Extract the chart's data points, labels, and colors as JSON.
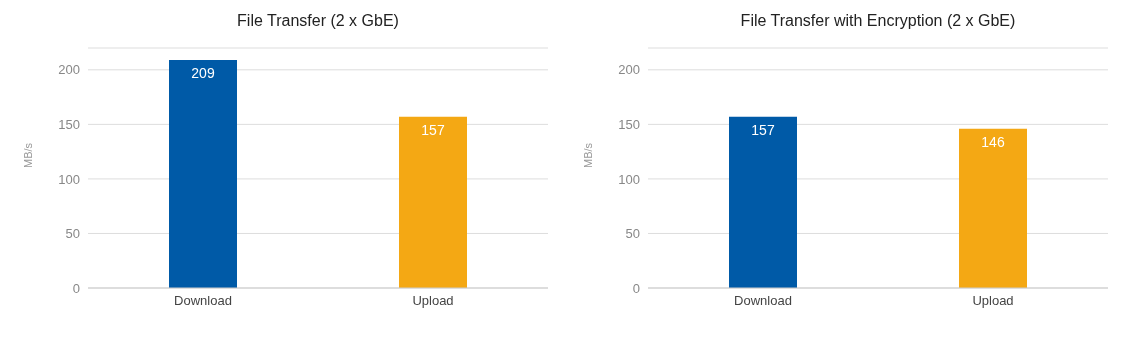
{
  "chart_data": [
    {
      "type": "bar",
      "title": "File Transfer (2 x GbE)",
      "ylabel": "MB/s",
      "categories": [
        "Download",
        "Upload"
      ],
      "values": [
        209,
        157
      ],
      "colors": [
        "#005aa7",
        "#f4a814"
      ],
      "ylim": [
        0,
        220
      ],
      "yticks": [
        0,
        50,
        100,
        150,
        200
      ],
      "grid": "y",
      "data_labels": true
    },
    {
      "type": "bar",
      "title": "File Transfer with Encryption (2 x GbE)",
      "ylabel": "MB/s",
      "categories": [
        "Download",
        "Upload"
      ],
      "values": [
        157,
        146
      ],
      "colors": [
        "#005aa7",
        "#f4a814"
      ],
      "ylim": [
        0,
        220
      ],
      "yticks": [
        0,
        50,
        100,
        150,
        200
      ],
      "grid": "y",
      "data_labels": true
    }
  ]
}
